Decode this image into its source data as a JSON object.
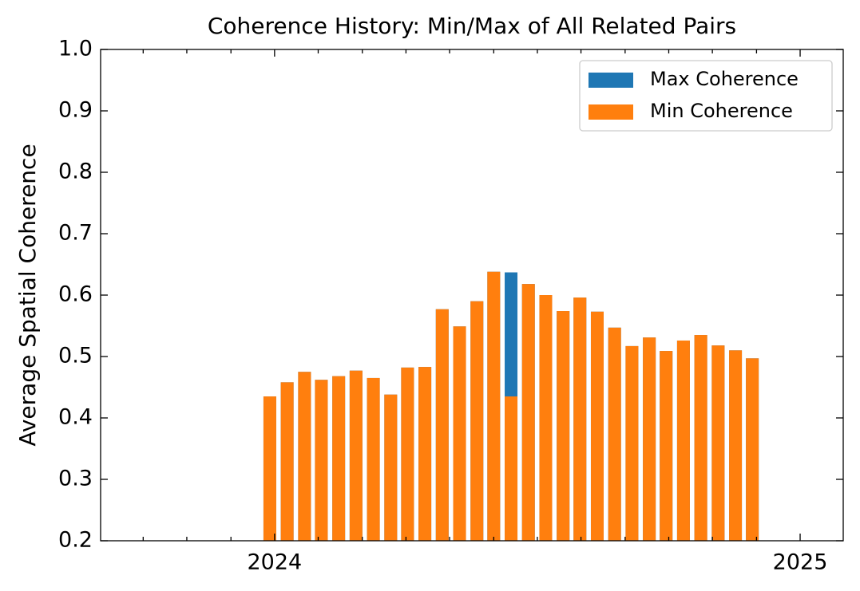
{
  "chart_data": {
    "type": "bar",
    "title": "Coherence History: Min/Max of All Related Pairs",
    "ylabel": "Average Spatial Coherence",
    "x": [
      2023.991,
      2024.024,
      2024.057,
      2024.089,
      2024.122,
      2024.155,
      2024.188,
      2024.221,
      2024.253,
      2024.286,
      2024.319,
      2024.352,
      2024.385,
      2024.417,
      2024.45,
      2024.483,
      2024.516,
      2024.549,
      2024.581,
      2024.614,
      2024.647,
      2024.68,
      2024.713,
      2024.745,
      2024.778,
      2024.811,
      2024.844,
      2024.877,
      2024.909
    ],
    "series": [
      {
        "name": "Max Coherence",
        "color": "#1f77b4",
        "values": [
          0.435,
          0.458,
          0.475,
          0.462,
          0.468,
          0.477,
          0.465,
          0.438,
          0.482,
          0.483,
          0.577,
          0.549,
          0.59,
          0.638,
          0.637,
          0.618,
          0.6,
          0.574,
          0.596,
          0.573,
          0.547,
          0.517,
          0.531,
          0.509,
          0.526,
          0.535,
          0.518,
          0.51,
          0.497
        ]
      },
      {
        "name": "Min Coherence",
        "color": "#ff7f0e",
        "values": [
          0.435,
          0.458,
          0.475,
          0.462,
          0.468,
          0.477,
          0.465,
          0.438,
          0.482,
          0.483,
          0.577,
          0.549,
          0.59,
          0.638,
          0.435,
          0.618,
          0.6,
          0.574,
          0.596,
          0.573,
          0.547,
          0.517,
          0.531,
          0.509,
          0.526,
          0.535,
          0.518,
          0.51,
          0.497
        ]
      }
    ],
    "xlim": [
      2023.669,
      2025.082
    ],
    "xticks": [
      2024,
      2025
    ],
    "xminorticks": [
      2023.75,
      2023.833,
      2023.917,
      2024.083,
      2024.167,
      2024.25,
      2024.333,
      2024.417,
      2024.5,
      2024.583,
      2024.667,
      2024.75,
      2024.833,
      2024.917
    ],
    "ylim": [
      0.2,
      1
    ],
    "yticks": [
      0.2,
      0.3,
      0.4,
      0.5,
      0.6,
      0.7,
      0.8,
      0.9,
      {
        "value": 1,
        "label": "1.0"
      }
    ],
    "grid": false,
    "legend": "upper right"
  }
}
